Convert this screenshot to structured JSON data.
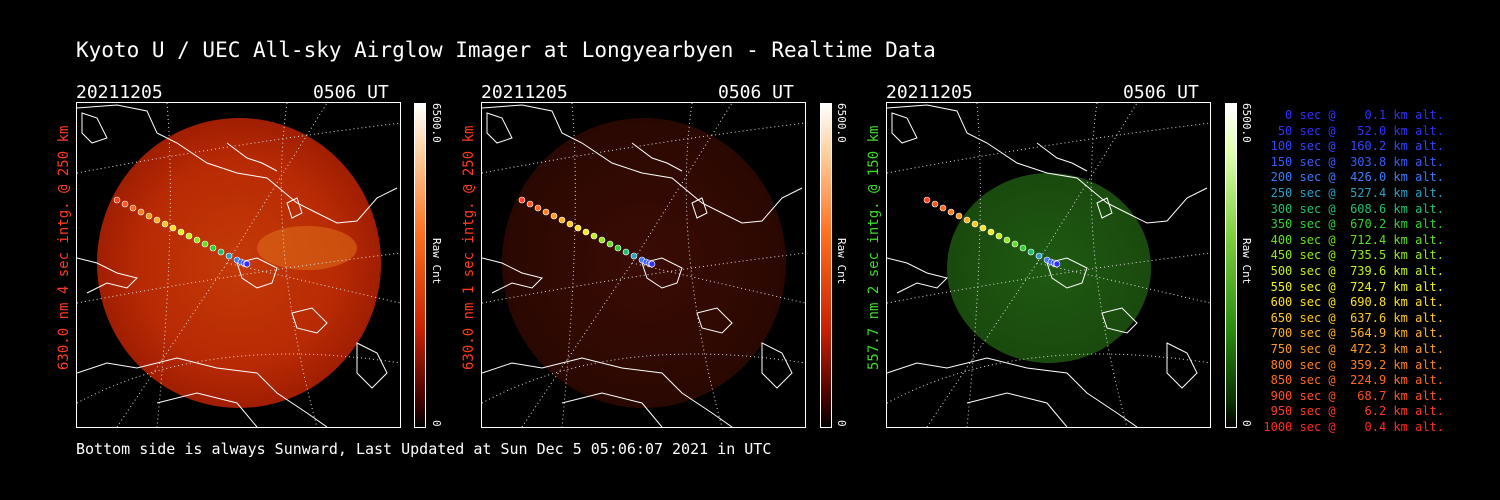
{
  "title": "Kyoto U / UEC All-sky Airglow Imager at Longyearbyen - Realtime Data",
  "footer": "Bottom side is always Sunward, Last Updated at Sun Dec  5 05:06:07 2021 in UTC",
  "panels": [
    {
      "date": "20211205",
      "time": "0506 UT",
      "ylabel": "630.0 nm 4 sec intg. @ 250 km",
      "ylabel_color": "#ff3b1e",
      "colorbar_max": "6500.0",
      "colorbar_min": "0",
      "colorbar_label": "Raw Cnt",
      "colormap": "red",
      "image_intensity": "bright"
    },
    {
      "date": "20211205",
      "time": "0506 UT",
      "ylabel": "630.0 nm 1 sec intg. @ 250 km",
      "ylabel_color": "#ff3b1e",
      "colorbar_max": "6500.0",
      "colorbar_min": "0",
      "colorbar_label": "Raw Cnt",
      "colormap": "red",
      "image_intensity": "dim"
    },
    {
      "date": "20211205",
      "time": "0506 UT",
      "ylabel": "557.7 nm 2 sec intg. @ 150 km",
      "ylabel_color": "#3ddc2a",
      "colorbar_max": "6500.0",
      "colorbar_min": "0",
      "colorbar_label": "Raw Cnt",
      "colormap": "green",
      "image_intensity": "medium"
    }
  ],
  "legend": [
    {
      "text": "   0 sec @    0.1 km alt.",
      "color": "#3030ff"
    },
    {
      "text": "  50 sec @   52.0 km alt.",
      "color": "#3030ff"
    },
    {
      "text": " 100 sec @  160.2 km alt.",
      "color": "#3048ff"
    },
    {
      "text": " 150 sec @  303.8 km alt.",
      "color": "#3a5cff"
    },
    {
      "text": " 200 sec @  426.0 km alt.",
      "color": "#3a7cff"
    },
    {
      "text": " 250 sec @  527.4 km alt.",
      "color": "#2aa0c8"
    },
    {
      "text": " 300 sec @  608.6 km alt.",
      "color": "#20c070"
    },
    {
      "text": " 350 sec @  670.2 km alt.",
      "color": "#30d030"
    },
    {
      "text": " 400 sec @  712.4 km alt.",
      "color": "#60e020"
    },
    {
      "text": " 450 sec @  735.5 km alt.",
      "color": "#90e820"
    },
    {
      "text": " 500 sec @  739.6 km alt.",
      "color": "#c0f020"
    },
    {
      "text": " 550 sec @  724.7 km alt.",
      "color": "#f0f020"
    },
    {
      "text": " 600 sec @  690.8 km alt.",
      "color": "#ffe020"
    },
    {
      "text": " 650 sec @  637.6 km alt.",
      "color": "#ffc820"
    },
    {
      "text": " 700 sec @  564.9 km alt.",
      "color": "#ffb020"
    },
    {
      "text": " 750 sec @  472.3 km alt.",
      "color": "#ff9820"
    },
    {
      "text": " 800 sec @  359.2 km alt.",
      "color": "#ff8020"
    },
    {
      "text": " 850 sec @  224.9 km alt.",
      "color": "#ff6820"
    },
    {
      "text": " 900 sec @   68.7 km alt.",
      "color": "#ff5020"
    },
    {
      "text": " 950 sec @    6.2 km alt.",
      "color": "#ff3a20"
    },
    {
      "text": "1000 sec @    0.4 km alt.",
      "color": "#ff2a20"
    }
  ]
}
